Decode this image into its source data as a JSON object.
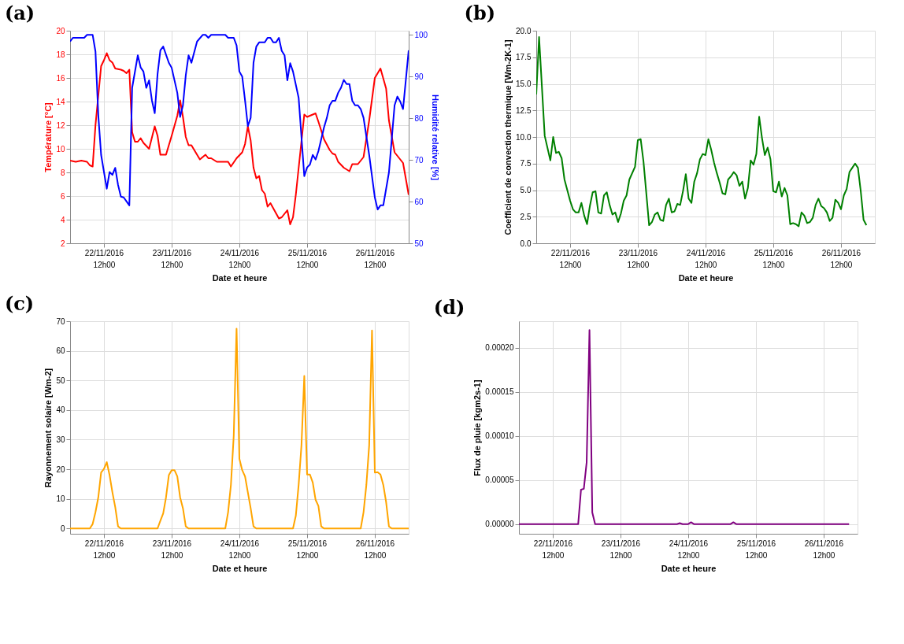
{
  "chart_data": [
    {
      "type": "line",
      "title": "(a)",
      "xlabel": "Date et heure",
      "ylabel": "Température [°C]",
      "y2label": "Humidité relative [%]",
      "grid": true,
      "xlim": [
        "2016-11-22T00:00",
        "2016-11-27T00:00"
      ],
      "xticks": [
        {
          "value": "2016-11-22T12:00",
          "label": "22/11/2016\n12h00"
        },
        {
          "value": "2016-11-23T12:00",
          "label": "23/11/2016\n12h00"
        },
        {
          "value": "2016-11-24T12:00",
          "label": "24/11/2016\n12h00"
        },
        {
          "value": "2016-11-25T12:00",
          "label": "25/11/2016\n12h00"
        },
        {
          "value": "2016-11-26T12:00",
          "label": "26/11/2016\n12h00"
        }
      ],
      "ylim": [
        2,
        20
      ],
      "yticks": [
        2,
        4,
        6,
        8,
        10,
        12,
        14,
        16,
        18,
        20
      ],
      "y2lim": [
        50,
        101
      ],
      "y2ticks": [
        50,
        60,
        70,
        80,
        90,
        100
      ],
      "series": [
        {
          "color": "#ff0000",
          "x": [
            "2016-11-22T00:00",
            "2016-11-22T02:00",
            "2016-11-22T04:00",
            "2016-11-22T06:00",
            "2016-11-22T07:00",
            "2016-11-22T08:00",
            "2016-11-22T09:00",
            "2016-11-22T11:00",
            "2016-11-22T12:00",
            "2016-11-22T13:00",
            "2016-11-22T14:00",
            "2016-11-22T15:00",
            "2016-11-22T16:00",
            "2016-11-22T18:00",
            "2016-11-22T19:00",
            "2016-11-22T20:00",
            "2016-11-22T21:00",
            "2016-11-22T22:00",
            "2016-11-22T23:00",
            "2016-11-23T00:00",
            "2016-11-23T01:00",
            "2016-11-23T02:00",
            "2016-11-23T04:00",
            "2016-11-23T06:00",
            "2016-11-23T07:00",
            "2016-11-23T08:00",
            "2016-11-23T10:00",
            "2016-11-23T12:00",
            "2016-11-23T14:00",
            "2016-11-23T15:00",
            "2016-11-23T16:00",
            "2016-11-23T17:00",
            "2016-11-23T18:00",
            "2016-11-23T19:00",
            "2016-11-23T21:00",
            "2016-11-23T22:00",
            "2016-11-24T00:00",
            "2016-11-24T01:00",
            "2016-11-24T02:00",
            "2016-11-24T04:00",
            "2016-11-24T08:00",
            "2016-11-24T09:00",
            "2016-11-24T11:00",
            "2016-11-24T13:00",
            "2016-11-24T14:00",
            "2016-11-24T15:00",
            "2016-11-24T16:00",
            "2016-11-24T17:00",
            "2016-11-24T18:00",
            "2016-11-24T19:00",
            "2016-11-24T20:00",
            "2016-11-24T21:00",
            "2016-11-24T22:00",
            "2016-11-24T23:00",
            "2016-11-25T02:00",
            "2016-11-25T03:00",
            "2016-11-25T05:00",
            "2016-11-25T06:00",
            "2016-11-25T07:00",
            "2016-11-25T08:00",
            "2016-11-25T11:00",
            "2016-11-25T12:00",
            "2016-11-25T13:00",
            "2016-11-25T15:00",
            "2016-11-25T16:00",
            "2016-11-25T18:00",
            "2016-11-25T20:00",
            "2016-11-25T21:00",
            "2016-11-25T22:00",
            "2016-11-25T23:00",
            "2016-11-26T01:00",
            "2016-11-26T03:00",
            "2016-11-26T04:00",
            "2016-11-26T06:00",
            "2016-11-26T08:00",
            "2016-11-26T10:00",
            "2016-11-26T12:00",
            "2016-11-26T14:00",
            "2016-11-26T16:00",
            "2016-11-26T17:00",
            "2016-11-26T19:00",
            "2016-11-26T21:00",
            "2016-11-26T22:00",
            "2016-11-27T00:00"
          ],
          "values": [
            9.0,
            8.9,
            9.0,
            8.9,
            8.6,
            8.5,
            12.0,
            17.0,
            17.5,
            18.1,
            17.5,
            17.3,
            16.8,
            16.7,
            16.6,
            16.4,
            16.7,
            11.4,
            10.6,
            10.6,
            10.9,
            10.5,
            10.0,
            11.9,
            11.1,
            9.5,
            9.5,
            11.1,
            12.8,
            14.1,
            12.7,
            11.0,
            10.3,
            10.3,
            9.5,
            9.1,
            9.5,
            9.2,
            9.2,
            8.9,
            8.9,
            8.5,
            9.2,
            9.7,
            10.4,
            11.9,
            10.7,
            8.4,
            7.5,
            7.7,
            6.5,
            6.2,
            5.1,
            5.4,
            4.1,
            4.2,
            4.8,
            3.6,
            4.2,
            6.1,
            12.9,
            12.7,
            12.8,
            13.0,
            12.3,
            10.8,
            9.9,
            9.6,
            9.5,
            8.9,
            8.4,
            8.1,
            8.7,
            8.7,
            9.3,
            12.4,
            16.0,
            16.8,
            15.1,
            12.4,
            9.7,
            9.1,
            8.8,
            6.1
          ]
        },
        {
          "color": "#0000ff",
          "axis": "y2",
          "x": [
            "2016-11-22T00:00",
            "2016-11-22T01:00",
            "2016-11-22T05:00",
            "2016-11-22T06:00",
            "2016-11-22T08:00",
            "2016-11-22T09:00",
            "2016-11-22T10:00",
            "2016-11-22T11:00",
            "2016-11-22T13:00",
            "2016-11-22T14:00",
            "2016-11-22T15:00",
            "2016-11-22T16:00",
            "2016-11-22T17:00",
            "2016-11-22T18:00",
            "2016-11-22T19:00",
            "2016-11-22T21:00",
            "2016-11-22T22:00",
            "2016-11-23T00:00",
            "2016-11-23T01:00",
            "2016-11-23T02:00",
            "2016-11-23T03:00",
            "2016-11-23T04:00",
            "2016-11-23T05:00",
            "2016-11-23T06:00",
            "2016-11-23T07:00",
            "2016-11-23T08:00",
            "2016-11-23T09:00",
            "2016-11-23T11:00",
            "2016-11-23T12:00",
            "2016-11-23T14:00",
            "2016-11-23T15:00",
            "2016-11-23T16:00",
            "2016-11-23T17:00",
            "2016-11-23T18:00",
            "2016-11-23T19:00",
            "2016-11-23T21:00",
            "2016-11-23T23:00",
            "2016-11-24T00:00",
            "2016-11-24T01:00",
            "2016-11-24T02:00",
            "2016-11-24T07:00",
            "2016-11-24T08:00",
            "2016-11-24T10:00",
            "2016-11-24T11:00",
            "2016-11-24T12:00",
            "2016-11-24T13:00",
            "2016-11-24T14:00",
            "2016-11-24T15:00",
            "2016-11-24T16:00",
            "2016-11-24T17:00",
            "2016-11-24T18:00",
            "2016-11-24T19:00",
            "2016-11-24T21:00",
            "2016-11-24T22:00",
            "2016-11-24T23:00",
            "2016-11-25T00:00",
            "2016-11-25T01:00",
            "2016-11-25T02:00",
            "2016-11-25T03:00",
            "2016-11-25T04:00",
            "2016-11-25T05:00",
            "2016-11-25T06:00",
            "2016-11-25T07:00",
            "2016-11-25T09:00",
            "2016-11-25T11:00",
            "2016-11-25T12:00",
            "2016-11-25T13:00",
            "2016-11-25T14:00",
            "2016-11-25T15:00",
            "2016-11-25T16:00",
            "2016-11-25T18:00",
            "2016-11-25T19:00",
            "2016-11-25T20:00",
            "2016-11-25T21:00",
            "2016-11-25T22:00",
            "2016-11-25T23:00",
            "2016-11-26T00:00",
            "2016-11-26T01:00",
            "2016-11-26T02:00",
            "2016-11-26T03:00",
            "2016-11-26T04:00",
            "2016-11-26T05:00",
            "2016-11-26T06:00",
            "2016-11-26T07:00",
            "2016-11-26T08:00",
            "2016-11-26T10:00",
            "2016-11-26T12:00",
            "2016-11-26T13:00",
            "2016-11-26T14:00",
            "2016-11-26T15:00",
            "2016-11-26T17:00",
            "2016-11-26T19:00",
            "2016-11-26T20:00",
            "2016-11-26T21:00",
            "2016-11-26T22:00",
            "2016-11-27T00:00"
          ],
          "values": [
            98.4,
            99.3,
            99.3,
            100,
            100,
            96.0,
            80.7,
            71.2,
            63.1,
            67.1,
            66.4,
            68.1,
            64.0,
            61.2,
            61.0,
            59.1,
            87.3,
            95.1,
            92.2,
            91.2,
            87.3,
            89.1,
            84.3,
            81.2,
            90.6,
            96.3,
            97.2,
            93.3,
            92.1,
            86.1,
            80.3,
            83.1,
            90.3,
            95.1,
            93.3,
            98.4,
            100,
            100,
            99.3,
            100,
            100,
            99.3,
            99.3,
            97.5,
            91.2,
            90.0,
            84.3,
            78.1,
            80.1,
            93.3,
            97.2,
            98.2,
            98.2,
            99.3,
            99.3,
            98.2,
            98.2,
            99.3,
            96.2,
            95.1,
            89.1,
            93.2,
            91.2,
            84.9,
            66.1,
            68.2,
            68.9,
            71.2,
            70.1,
            72.1,
            77.8,
            80.1,
            83.1,
            84.2,
            84.2,
            86.1,
            87.3,
            89.2,
            88.2,
            88.2,
            84.2,
            83.1,
            83.1,
            82.2,
            80.1,
            71.2,
            61.0,
            58.1,
            59.1,
            59.1,
            67.0,
            83.1,
            85.2,
            84.0,
            82.2,
            96.3
          ]
        }
      ]
    },
    {
      "type": "line",
      "title": "(b)",
      "xlabel": "Date et heure",
      "ylabel": "Coefficient de convection thermique [Wm-2K-1]",
      "grid": true,
      "xlim": [
        "2016-11-22T00:00",
        "2016-11-27T00:00"
      ],
      "xticks": [
        {
          "value": "2016-11-22T12:00",
          "label": "22/11/2016\n12h00"
        },
        {
          "value": "2016-11-23T12:00",
          "label": "23/11/2016\n12h00"
        },
        {
          "value": "2016-11-24T12:00",
          "label": "24/11/2016\n12h00"
        },
        {
          "value": "2016-11-25T12:00",
          "label": "25/11/2016\n12h00"
        },
        {
          "value": "2016-11-26T12:00",
          "label": "26/11/2016\n12h00"
        }
      ],
      "ylim": [
        0,
        20
      ],
      "yticks": [
        {
          "value": 0,
          "label": "0.0"
        },
        {
          "value": 2.5,
          "label": "2.5"
        },
        {
          "value": 5,
          "label": "5.0"
        },
        {
          "value": 7.5,
          "label": "7.5"
        },
        {
          "value": 10,
          "label": "10.0"
        },
        {
          "value": 12.5,
          "label": "12.5"
        },
        {
          "value": 15,
          "label": "15.0"
        },
        {
          "value": 17.5,
          "label": "17.5"
        },
        {
          "value": 20,
          "label": "20.0"
        }
      ],
      "series": [
        {
          "color": "#008000",
          "x": [
            "2016-11-22T00:00",
            "2016-11-22T01:00",
            "2016-11-22T03:00",
            "2016-11-22T05:00",
            "2016-11-22T06:00",
            "2016-11-22T07:00",
            "2016-11-22T08:00",
            "2016-11-22T09:00",
            "2016-11-22T10:00",
            "2016-11-22T11:00",
            "2016-11-22T12:00",
            "2016-11-22T13:00",
            "2016-11-22T14:00",
            "2016-11-22T15:00",
            "2016-11-22T16:00",
            "2016-11-22T17:00",
            "2016-11-22T18:00",
            "2016-11-22T19:00",
            "2016-11-22T20:00",
            "2016-11-22T21:00",
            "2016-11-22T22:00",
            "2016-11-22T23:00",
            "2016-11-23T00:00",
            "2016-11-23T01:00",
            "2016-11-23T02:00",
            "2016-11-23T03:00",
            "2016-11-23T04:00",
            "2016-11-23T05:00",
            "2016-11-23T06:00",
            "2016-11-23T07:00",
            "2016-11-23T08:00",
            "2016-11-23T09:00",
            "2016-11-23T11:00",
            "2016-11-23T12:00",
            "2016-11-23T13:00",
            "2016-11-23T14:00",
            "2016-11-23T16:00",
            "2016-11-23T17:00",
            "2016-11-23T18:00",
            "2016-11-23T19:00",
            "2016-11-23T20:00",
            "2016-11-23T21:00",
            "2016-11-23T22:00",
            "2016-11-23T23:00",
            "2016-11-24T00:00",
            "2016-11-24T01:00",
            "2016-11-24T02:00",
            "2016-11-24T03:00",
            "2016-11-24T04:00",
            "2016-11-24T05:00",
            "2016-11-24T06:00",
            "2016-11-24T07:00",
            "2016-11-24T08:00",
            "2016-11-24T09:00",
            "2016-11-24T10:00",
            "2016-11-24T11:00",
            "2016-11-24T12:00",
            "2016-11-24T13:00",
            "2016-11-24T14:00",
            "2016-11-24T15:00",
            "2016-11-24T16:00",
            "2016-11-24T17:00",
            "2016-11-24T18:00",
            "2016-11-24T19:00",
            "2016-11-24T20:00",
            "2016-11-24T21:00",
            "2016-11-24T22:00",
            "2016-11-24T23:00",
            "2016-11-25T00:00",
            "2016-11-25T01:00",
            "2016-11-25T02:00",
            "2016-11-25T03:00",
            "2016-11-25T04:00",
            "2016-11-25T05:00",
            "2016-11-25T06:00",
            "2016-11-25T07:00",
            "2016-11-25T08:00",
            "2016-11-25T09:00",
            "2016-11-25T10:00",
            "2016-11-25T11:00",
            "2016-11-25T12:00",
            "2016-11-25T13:00",
            "2016-11-25T14:00",
            "2016-11-25T15:00",
            "2016-11-25T16:00",
            "2016-11-25T17:00",
            "2016-11-25T18:00",
            "2016-11-25T19:00",
            "2016-11-25T20:00",
            "2016-11-25T21:00",
            "2016-11-25T22:00",
            "2016-11-25T23:00",
            "2016-11-26T00:00",
            "2016-11-26T01:00",
            "2016-11-26T02:00",
            "2016-11-26T03:00",
            "2016-11-26T04:00",
            "2016-11-26T05:00",
            "2016-11-26T06:00",
            "2016-11-26T07:00",
            "2016-11-26T08:00",
            "2016-11-26T09:00",
            "2016-11-26T10:00",
            "2016-11-26T11:00",
            "2016-11-26T12:00",
            "2016-11-26T13:00",
            "2016-11-26T14:00",
            "2016-11-26T15:00",
            "2016-11-26T16:00",
            "2016-11-26T17:00",
            "2016-11-26T18:00",
            "2016-11-26T19:00",
            "2016-11-26T20:00",
            "2016-11-26T21:00"
          ],
          "values": [
            14.0,
            19.4,
            10.1,
            7.8,
            10.0,
            8.5,
            8.6,
            8.0,
            6.0,
            5.0,
            4.0,
            3.2,
            2.9,
            2.9,
            3.8,
            2.6,
            1.8,
            3.5,
            4.8,
            4.9,
            2.9,
            2.8,
            4.5,
            4.8,
            3.6,
            2.7,
            2.9,
            2.0,
            2.8,
            4.0,
            4.5,
            6.0,
            7.2,
            9.7,
            9.8,
            7.7,
            1.7,
            2.0,
            2.7,
            2.9,
            2.2,
            2.1,
            3.6,
            4.2,
            2.9,
            3.0,
            3.7,
            3.6,
            4.9,
            6.5,
            4.2,
            3.8,
            5.8,
            6.6,
            7.9,
            8.4,
            8.3,
            9.8,
            8.8,
            7.6,
            6.6,
            5.7,
            4.7,
            4.6,
            6.0,
            6.3,
            6.7,
            6.4,
            5.4,
            5.8,
            4.2,
            5.2,
            7.8,
            7.4,
            8.4,
            11.9,
            9.9,
            8.3,
            9.0,
            7.9,
            4.9,
            4.8,
            5.8,
            4.4,
            5.2,
            4.5,
            1.8,
            1.9,
            1.8,
            1.6,
            2.9,
            2.6,
            1.9,
            2.0,
            2.4,
            3.6,
            4.2,
            3.5,
            3.3,
            2.9,
            2.1,
            2.4,
            4.1,
            3.8,
            3.2,
            4.5,
            5.1,
            6.7,
            7.1,
            7.5,
            7.1,
            4.9,
            2.2,
            1.7
          ]
        }
      ]
    },
    {
      "type": "line",
      "title": "(c)",
      "xlabel": "Date et heure",
      "ylabel": "Rayonnement solaire [Wm-2]",
      "grid": true,
      "xlim": [
        "2016-11-22T00:00",
        "2016-11-27T00:00"
      ],
      "xticks": [
        {
          "value": "2016-11-22T12:00",
          "label": "22/11/2016\n12h00"
        },
        {
          "value": "2016-11-23T12:00",
          "label": "23/11/2016\n12h00"
        },
        {
          "value": "2016-11-24T12:00",
          "label": "24/11/2016\n12h00"
        },
        {
          "value": "2016-11-25T12:00",
          "label": "25/11/2016\n12h00"
        },
        {
          "value": "2016-11-26T12:00",
          "label": "26/11/2016\n12h00"
        }
      ],
      "ylim": [
        -1.8,
        70
      ],
      "yticks": [
        0,
        10,
        20,
        30,
        40,
        50,
        60,
        70
      ],
      "series": [
        {
          "color": "#ffa500",
          "x": [
            "2016-11-22T00:00",
            "2016-11-22T07:00",
            "2016-11-22T08:00",
            "2016-11-22T09:00",
            "2016-11-22T10:00",
            "2016-11-22T11:00",
            "2016-11-22T12:00",
            "2016-11-22T13:00",
            "2016-11-22T14:00",
            "2016-11-22T15:00",
            "2016-11-22T16:00",
            "2016-11-22T17:00",
            "2016-11-22T18:00",
            "2016-11-23T07:00",
            "2016-11-23T08:00",
            "2016-11-23T09:00",
            "2016-11-23T10:00",
            "2016-11-23T11:00",
            "2016-11-23T12:00",
            "2016-11-23T13:00",
            "2016-11-23T14:00",
            "2016-11-23T15:00",
            "2016-11-23T16:00",
            "2016-11-23T17:00",
            "2016-11-23T18:00",
            "2016-11-24T07:00",
            "2016-11-24T08:00",
            "2016-11-24T09:00",
            "2016-11-24T10:00",
            "2016-11-24T11:00",
            "2016-11-24T12:00",
            "2016-11-24T13:00",
            "2016-11-24T14:00",
            "2016-11-24T15:00",
            "2016-11-24T16:00",
            "2016-11-24T17:00",
            "2016-11-24T18:00",
            "2016-11-25T07:00",
            "2016-11-25T08:00",
            "2016-11-25T09:00",
            "2016-11-25T10:00",
            "2016-11-25T11:00",
            "2016-11-25T12:00",
            "2016-11-25T13:00",
            "2016-11-25T14:00",
            "2016-11-25T15:00",
            "2016-11-25T16:00",
            "2016-11-25T17:00",
            "2016-11-25T18:00",
            "2016-11-26T07:00",
            "2016-11-26T08:00",
            "2016-11-26T09:00",
            "2016-11-26T10:00",
            "2016-11-26T11:00",
            "2016-11-26T12:00",
            "2016-11-26T13:00",
            "2016-11-26T14:00",
            "2016-11-26T15:00",
            "2016-11-26T16:00",
            "2016-11-26T17:00",
            "2016-11-26T18:00",
            "2016-11-27T00:00"
          ],
          "values": [
            0,
            0,
            1.5,
            5.5,
            10.5,
            18.9,
            20.1,
            22.4,
            18.0,
            12.2,
            7.2,
            0.7,
            0,
            0,
            2.6,
            5.1,
            10.5,
            18.0,
            19.7,
            19.7,
            17.6,
            10.5,
            6.8,
            0.7,
            0,
            0,
            5.5,
            14.7,
            31.4,
            67.5,
            23.5,
            19.7,
            17.6,
            12.2,
            6.8,
            0.7,
            0,
            0,
            4.3,
            14.7,
            28.1,
            51.5,
            18.2,
            18.2,
            15.5,
            9.7,
            7.6,
            0.7,
            0,
            0,
            5.5,
            14.7,
            28.1,
            66.9,
            18.9,
            19.0,
            18.2,
            14.7,
            8.9,
            0.7,
            0,
            0
          ]
        }
      ]
    },
    {
      "type": "line",
      "title": "(d)",
      "xlabel": "Date et heure",
      "ylabel": "Flux de pluie [kgm2s-1]",
      "grid": true,
      "xlim": [
        "2016-11-22T00:00",
        "2016-11-27T00:00"
      ],
      "xticks": [
        {
          "value": "2016-11-22T12:00",
          "label": "22/11/2016\n12h00"
        },
        {
          "value": "2016-11-23T12:00",
          "label": "23/11/2016\n12h00"
        },
        {
          "value": "2016-11-24T12:00",
          "label": "24/11/2016\n12h00"
        },
        {
          "value": "2016-11-25T12:00",
          "label": "25/11/2016\n12h00"
        },
        {
          "value": "2016-11-26T12:00",
          "label": "26/11/2016\n12h00"
        }
      ],
      "ylim": [
        -1.1e-05,
        0.00023
      ],
      "yticks": [
        {
          "value": 0,
          "label": "0.00000"
        },
        {
          "value": 5e-05,
          "label": "0.00005"
        },
        {
          "value": 0.0001,
          "label": "0.00010"
        },
        {
          "value": 0.00015,
          "label": "0.00015"
        },
        {
          "value": 0.0002,
          "label": "0.00020"
        }
      ],
      "series": [
        {
          "color": "#800080",
          "x": [
            "2016-11-22T00:00",
            "2016-11-22T21:00",
            "2016-11-22T22:00",
            "2016-11-22T23:00",
            "2016-11-23T00:00",
            "2016-11-23T01:00",
            "2016-11-23T02:00",
            "2016-11-23T03:00",
            "2016-11-24T08:00",
            "2016-11-24T09:00",
            "2016-11-24T10:00",
            "2016-11-24T12:00",
            "2016-11-24T13:00",
            "2016-11-24T14:00",
            "2016-11-25T03:00",
            "2016-11-25T04:00",
            "2016-11-25T05:00",
            "2016-11-26T21:00"
          ],
          "values": [
            0,
            0,
            3.9e-05,
            4e-05,
            7e-05,
            0.00022,
            1.3e-05,
            0,
            0,
            1e-06,
            0,
            0,
            2e-06,
            0,
            0,
            2e-06,
            0,
            0
          ]
        }
      ]
    }
  ]
}
